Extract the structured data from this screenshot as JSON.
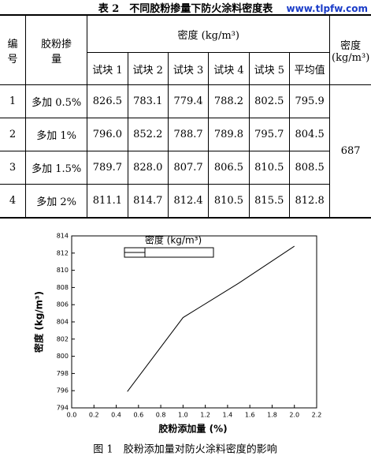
{
  "watermark": "www.tlpfw.com",
  "table": {
    "caption": "表 2　不同胶粉掺量下防火涂料密度表",
    "headers": {
      "no": "编号",
      "dosage": "胶粉掺量",
      "density": "密度 (kg/m³)",
      "samples": [
        "试块 1",
        "试块 2",
        "试块 3",
        "试块 4",
        "试块 5",
        "平均值"
      ],
      "overall": "密度 (kg/m³)"
    },
    "rows": [
      [
        "1",
        "多加 0.5%",
        "826.5",
        "783.1",
        "779.4",
        "788.2",
        "802.5",
        "795.9"
      ],
      [
        "2",
        "多加 1%",
        "796.0",
        "852.2",
        "788.7",
        "789.8",
        "795.7",
        "804.5"
      ],
      [
        "3",
        "多加 1.5%",
        "789.7",
        "828.0",
        "807.7",
        "806.5",
        "810.5",
        "808.5"
      ],
      [
        "4",
        "多加 2%",
        "811.1",
        "814.7",
        "812.4",
        "810.5",
        "815.5",
        "812.8"
      ]
    ],
    "overall_value": "687"
  },
  "chart_data": {
    "type": "line",
    "legend": "密度 (kg/m³)",
    "x_label": "胶粉添加量 (%)",
    "y_label": "密度 (kg/m³)",
    "x": [
      0.5,
      1.0,
      1.5,
      2.0
    ],
    "values": [
      795.9,
      804.5,
      808.5,
      812.8
    ],
    "color": "#000000",
    "xlim": [
      0,
      2.2
    ],
    "xticks": [
      {
        "value": 0,
        "label": "0.0"
      },
      0.2,
      0.4,
      0.6,
      0.8,
      {
        "value": 1,
        "label": "1.0"
      },
      1.2,
      1.4,
      1.6,
      1.8,
      {
        "value": 2,
        "label": "2.0"
      },
      2.2
    ],
    "ylim": [
      794,
      814
    ],
    "yticks": [
      794,
      796,
      798,
      800,
      802,
      804,
      806,
      808,
      810,
      812,
      814
    ],
    "grid": false,
    "caption": "图 1　胶粉添加量对防火涂料密度的影响"
  }
}
